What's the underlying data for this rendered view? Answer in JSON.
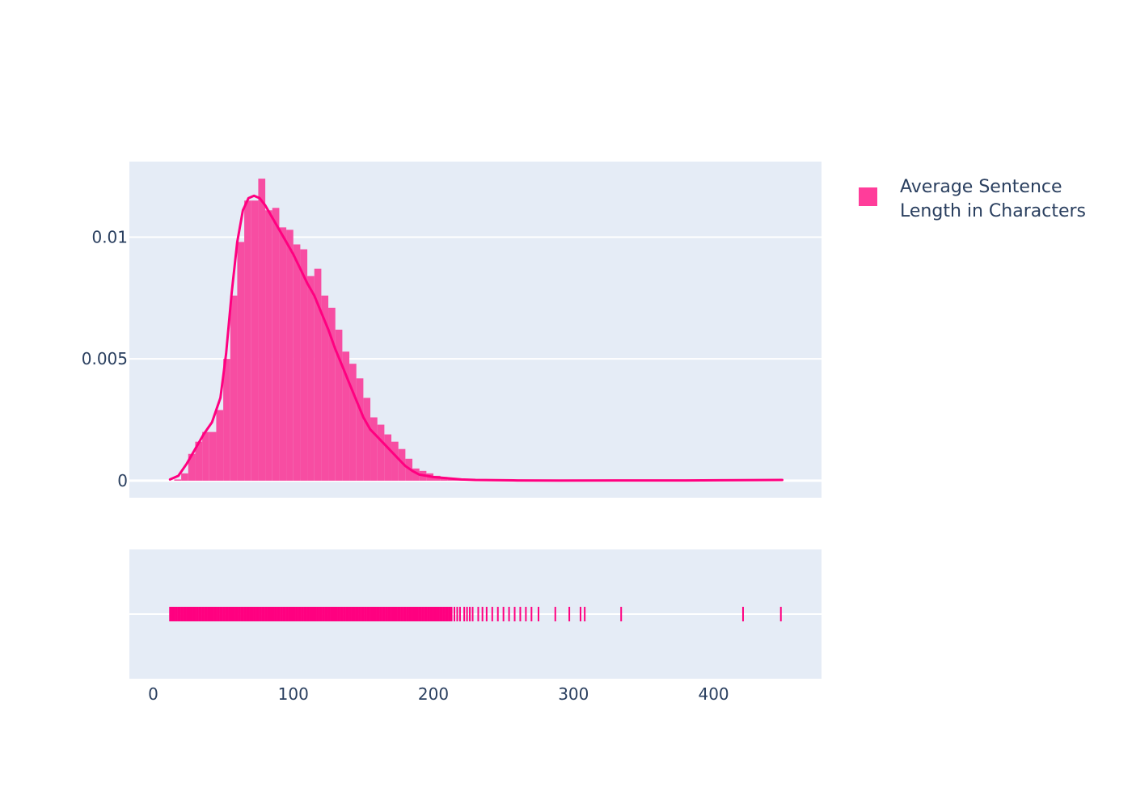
{
  "chart_data": {
    "type": "histogram",
    "legend": {
      "placement": "top-right",
      "entries": [
        {
          "label_lines": [
            "Average Sentence",
            "Length in Characters"
          ],
          "color": "#ff3d9a"
        }
      ]
    },
    "colors": {
      "bar": "#f7479f",
      "curve": "#ff0080",
      "rug": "#ff0080",
      "plot_bg": "#e5ecf6",
      "grid": "#ffffff",
      "text": "#2a3f5f"
    },
    "x_axis": {
      "range": [
        -17,
        477
      ],
      "ticks": [
        0,
        100,
        200,
        300,
        400
      ],
      "tick_labels": [
        "0",
        "100",
        "200",
        "300",
        "400"
      ]
    },
    "y_axis": {
      "range": [
        -0.0007,
        0.0131
      ],
      "ticks": [
        0,
        0.005,
        0.01
      ],
      "tick_labels": [
        "0",
        "0.005",
        "0.01"
      ],
      "grid": true
    },
    "histogram": {
      "bin_width": 5,
      "bin_starts": [
        15,
        20,
        25,
        30,
        35,
        40,
        45,
        50,
        55,
        60,
        65,
        70,
        75,
        80,
        85,
        90,
        95,
        100,
        105,
        110,
        115,
        120,
        125,
        130,
        135,
        140,
        145,
        150,
        155,
        160,
        165,
        170,
        175,
        180,
        185,
        190,
        195,
        200,
        205,
        210,
        215,
        220,
        225
      ],
      "values": [
        5e-05,
        0.0003,
        0.0011,
        0.0016,
        0.002,
        0.002,
        0.0029,
        0.005,
        0.0076,
        0.0098,
        0.0115,
        0.0115,
        0.0124,
        0.0111,
        0.0112,
        0.0104,
        0.0103,
        0.0097,
        0.0095,
        0.0084,
        0.0087,
        0.0076,
        0.0071,
        0.0062,
        0.0053,
        0.0048,
        0.0042,
        0.0034,
        0.0026,
        0.0023,
        0.0019,
        0.0016,
        0.0013,
        0.0009,
        0.0005,
        0.0004,
        0.0003,
        0.0002,
        0.00015,
        0.0001,
        8e-05,
        5e-05,
        3e-05
      ]
    },
    "kde_curve": {
      "x": [
        12,
        18,
        24,
        30,
        36,
        42,
        48,
        52,
        56,
        60,
        64,
        68,
        72,
        76,
        80,
        85,
        90,
        95,
        100,
        105,
        110,
        115,
        120,
        125,
        130,
        135,
        140,
        145,
        150,
        155,
        160,
        165,
        170,
        175,
        180,
        185,
        190,
        200,
        210,
        220,
        230,
        260,
        290,
        330,
        380,
        420,
        449
      ],
      "y": [
        5e-05,
        0.0002,
        0.0007,
        0.0013,
        0.0019,
        0.0024,
        0.0034,
        0.0052,
        0.0077,
        0.0098,
        0.0111,
        0.0116,
        0.0117,
        0.0116,
        0.0113,
        0.0108,
        0.0103,
        0.0098,
        0.0093,
        0.0087,
        0.0081,
        0.0076,
        0.0069,
        0.0062,
        0.0054,
        0.0047,
        0.004,
        0.0033,
        0.0026,
        0.0021,
        0.0018,
        0.0015,
        0.0012,
        0.0009,
        0.0006,
        0.0004,
        0.00025,
        0.00015,
        0.0001,
        5e-05,
        3e-05,
        1e-05,
        5e-06,
        1e-05,
        1e-05,
        2e-05,
        3e-05
      ]
    },
    "rug": {
      "dense_range": [
        12,
        213
      ],
      "sparse_x": [
        215,
        217,
        219,
        222,
        224,
        226,
        228,
        232,
        235,
        238,
        242,
        246,
        250,
        254,
        258,
        262,
        266,
        270,
        275,
        287,
        297,
        305,
        308,
        334,
        421,
        448
      ]
    }
  }
}
